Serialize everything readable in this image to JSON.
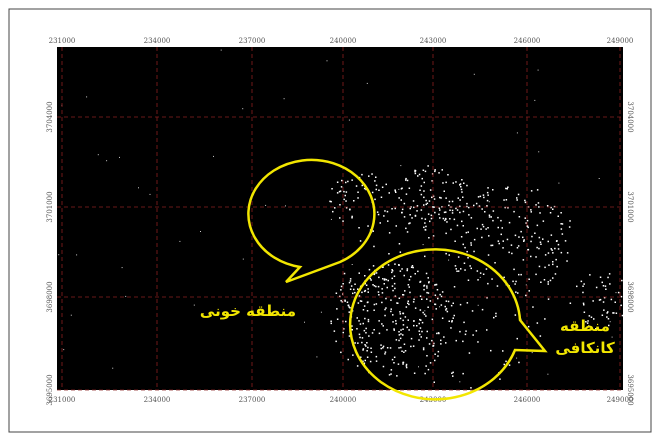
{
  "map": {
    "x_labels": [
      "231000",
      "234000",
      "237000",
      "240000",
      "243000",
      "246000",
      "249000"
    ],
    "y_labels": [
      "3704000",
      "3701000",
      "3698000",
      "3695000"
    ],
    "annotations": [
      {
        "lines": [
          "منطقه خونی"
        ]
      },
      {
        "lines": [
          "منطقه",
          "کانکافی"
        ]
      }
    ]
  }
}
